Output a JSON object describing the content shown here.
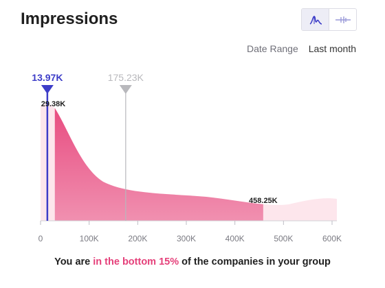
{
  "header": {
    "title": "Impressions",
    "view_toggle": [
      {
        "icon": "distribution-curve-icon",
        "active": true
      },
      {
        "icon": "range-bar-icon",
        "active": false
      }
    ]
  },
  "date_range": {
    "label": "Date Range",
    "value": "Last month"
  },
  "footer": {
    "prefix": "You are ",
    "highlight": "in the bottom 15%",
    "suffix": " of the companies in your group"
  },
  "colors": {
    "accent": "#3d3dc8",
    "pink": "#e5407a",
    "pink_light": "#fde6ec",
    "marker_gray": "#b8b8bc"
  },
  "chart_data": {
    "type": "area",
    "x_ticks": [
      0,
      100000,
      200000,
      300000,
      400000,
      500000,
      600000
    ],
    "x_tick_labels": [
      "0",
      "100K",
      "200K",
      "300K",
      "400K",
      "500K",
      "600K"
    ],
    "xlim": [
      0,
      600000
    ],
    "markers": [
      {
        "label": "13.97K",
        "value": 13970,
        "role": "you"
      },
      {
        "label": "175.23K",
        "value": 175230,
        "role": "average"
      }
    ],
    "annotations": [
      {
        "label": "29.38K",
        "value": 29380
      },
      {
        "label": "458.25K",
        "value": 458250
      }
    ],
    "highlighted_range": [
      29380,
      458250
    ]
  }
}
